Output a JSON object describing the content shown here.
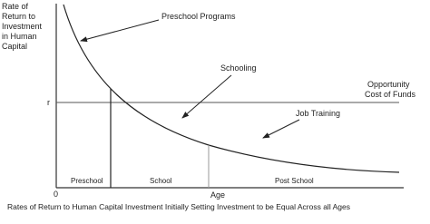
{
  "y_axis_label": [
    "Rate of",
    "Return to",
    "Investment",
    "in Human",
    "Capital"
  ],
  "y_marker": "r",
  "origin": "0",
  "x_axis_label": "Age",
  "curve_labels": [
    "Preschool Programs",
    "Schooling",
    "Job Training"
  ],
  "line_label": [
    "Opportunity",
    "Cost of Funds"
  ],
  "stages": [
    "Preschool",
    "School",
    "Post School"
  ],
  "caption": "Rates of Return to Human Capital Investment Initially Setting Investment to be Equal Across all Ages"
}
